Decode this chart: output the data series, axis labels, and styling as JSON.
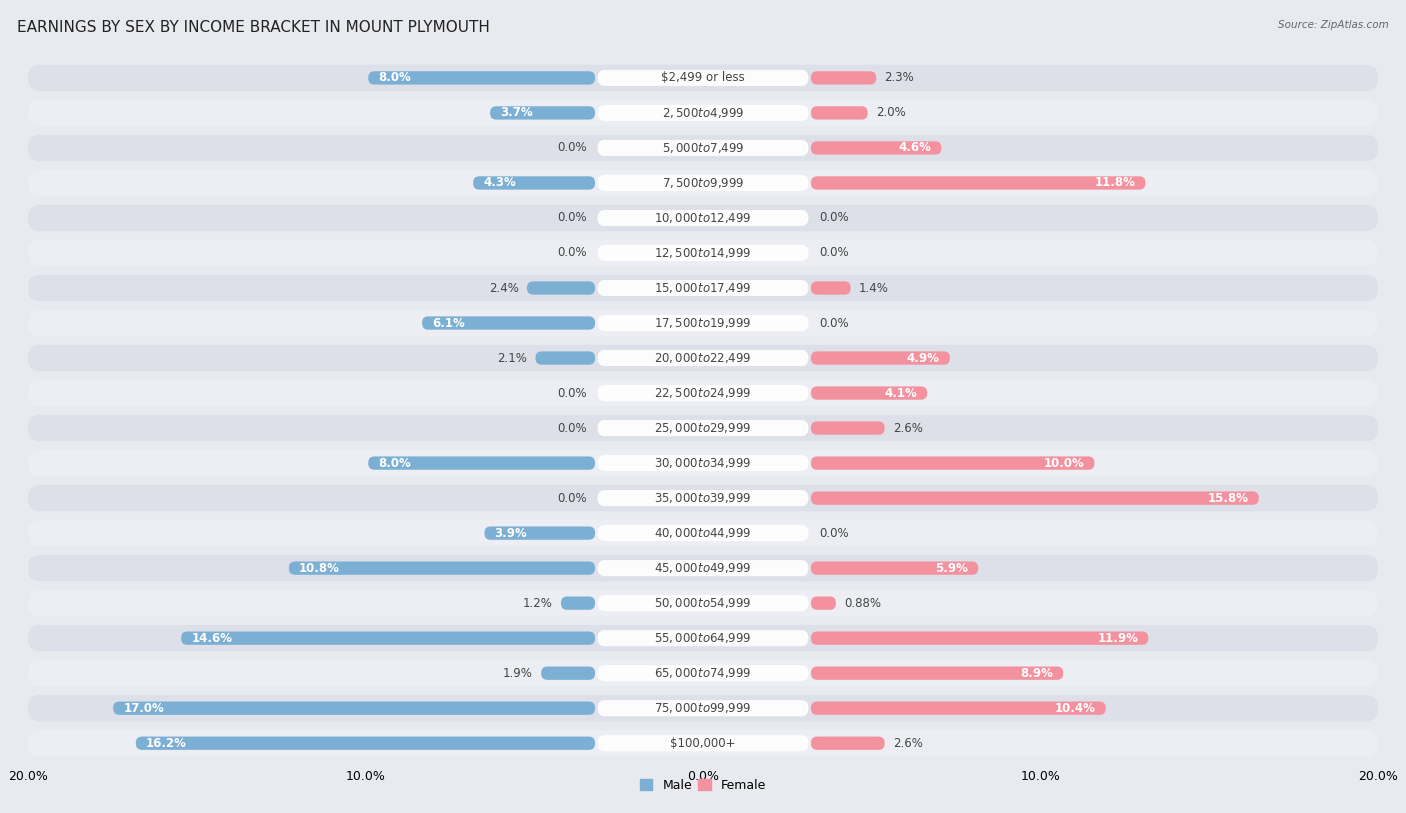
{
  "title": "EARNINGS BY SEX BY INCOME BRACKET IN MOUNT PLYMOUTH",
  "source": "Source: ZipAtlas.com",
  "categories": [
    "$2,499 or less",
    "$2,500 to $4,999",
    "$5,000 to $7,499",
    "$7,500 to $9,999",
    "$10,000 to $12,499",
    "$12,500 to $14,999",
    "$15,000 to $17,499",
    "$17,500 to $19,999",
    "$20,000 to $22,499",
    "$22,500 to $24,999",
    "$25,000 to $29,999",
    "$30,000 to $34,999",
    "$35,000 to $39,999",
    "$40,000 to $44,999",
    "$45,000 to $49,999",
    "$50,000 to $54,999",
    "$55,000 to $64,999",
    "$65,000 to $74,999",
    "$75,000 to $99,999",
    "$100,000+"
  ],
  "male_values": [
    8.0,
    3.7,
    0.0,
    4.3,
    0.0,
    0.0,
    2.4,
    6.1,
    2.1,
    0.0,
    0.0,
    8.0,
    0.0,
    3.9,
    10.8,
    1.2,
    14.6,
    1.9,
    17.0,
    16.2
  ],
  "female_values": [
    2.3,
    2.0,
    4.6,
    11.8,
    0.0,
    0.0,
    1.4,
    0.0,
    4.9,
    4.1,
    2.6,
    10.0,
    15.8,
    0.0,
    5.9,
    0.88,
    11.9,
    8.9,
    10.4,
    2.6
  ],
  "male_label_values": [
    "8.0%",
    "3.7%",
    "0.0%",
    "4.3%",
    "0.0%",
    "0.0%",
    "2.4%",
    "6.1%",
    "2.1%",
    "0.0%",
    "0.0%",
    "8.0%",
    "0.0%",
    "3.9%",
    "10.8%",
    "1.2%",
    "14.6%",
    "1.9%",
    "17.0%",
    "16.2%"
  ],
  "female_label_values": [
    "2.3%",
    "2.0%",
    "4.6%",
    "11.8%",
    "0.0%",
    "0.0%",
    "1.4%",
    "0.0%",
    "4.9%",
    "4.1%",
    "2.6%",
    "10.0%",
    "15.8%",
    "0.0%",
    "5.9%",
    "0.88%",
    "11.9%",
    "8.9%",
    "10.4%",
    "2.6%"
  ],
  "male_color": "#7bafd4",
  "female_color": "#f4919f",
  "male_label": "Male",
  "female_label": "Female",
  "axis_max": 20.0,
  "background_color": "#e8eaf0",
  "row_color_odd": "#dde0e8",
  "row_color_even": "#eceef3",
  "title_fontsize": 11,
  "label_fontsize": 8.5,
  "tick_fontsize": 9,
  "cat_label_fontsize": 8.5
}
